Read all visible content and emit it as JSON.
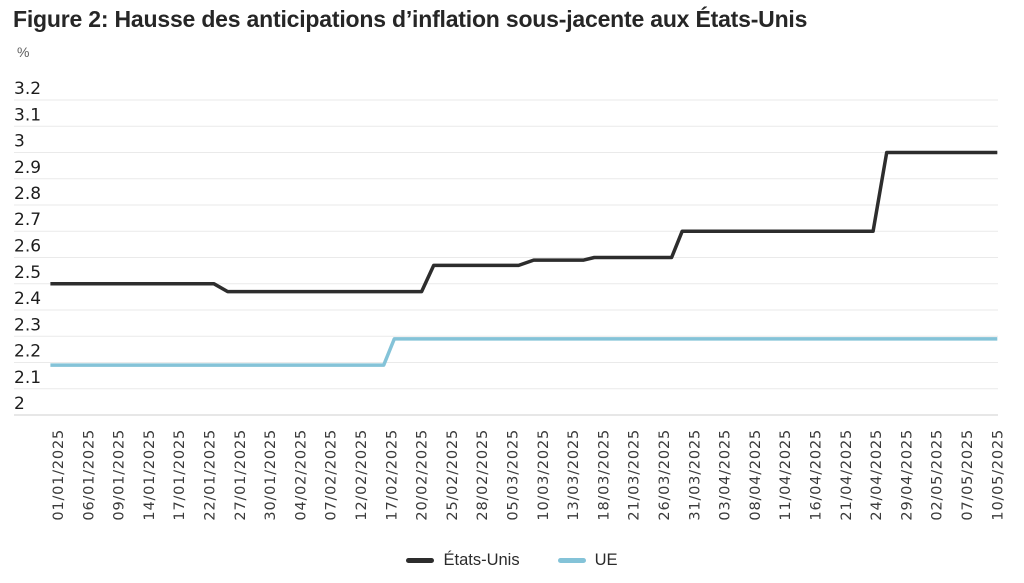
{
  "figure": {
    "title": "Figure 2: Hausse des anticipations d’inflation sous-jacente aux États-Unis",
    "unit_label": "%"
  },
  "chart_data": {
    "type": "line",
    "title": "Figure 2: Hausse des anticipations d’inflation sous-jacente aux États-Unis",
    "xlabel": "",
    "ylabel": "%",
    "ylim": [
      2.0,
      3.2
    ],
    "grid": true,
    "legend_position": "bottom",
    "line_style": "step",
    "y_ticks": [
      "3.2",
      "3.1",
      "3",
      "2.9",
      "2.8",
      "2.7",
      "2.6",
      "2.5",
      "2.4",
      "2.3",
      "2.2",
      "2.1",
      "2"
    ],
    "x_labels": [
      "01/01/2025",
      "06/01/2025",
      "09/01/2025",
      "14/01/2025",
      "17/01/2025",
      "22/01/2025",
      "27/01/2025",
      "30/01/2025",
      "04/02/2025",
      "07/02/2025",
      "12/02/2025",
      "17/02/2025",
      "20/02/2025",
      "25/02/2025",
      "28/02/2025",
      "05/03/2025",
      "10/03/2025",
      "13/03/2025",
      "18/03/2025",
      "21/03/2025",
      "26/03/2025",
      "31/03/2025",
      "03/04/2025",
      "08/04/2025",
      "11/04/2025",
      "16/04/2025",
      "21/04/2025",
      "24/04/2025",
      "29/04/2025",
      "02/05/2025",
      "07/05/2025",
      "10/05/2025"
    ],
    "series": [
      {
        "name": "États-Unis",
        "color": "#2d2d2d",
        "segments": [
          {
            "start": -0.25,
            "end": 5.15,
            "value": 2.5
          },
          {
            "start": 5.6,
            "end": 12.0,
            "value": 2.47
          },
          {
            "start": 12.4,
            "end": 15.2,
            "value": 2.57
          },
          {
            "start": 15.7,
            "end": 17.35,
            "value": 2.59
          },
          {
            "start": 17.7,
            "end": 20.25,
            "value": 2.6
          },
          {
            "start": 20.6,
            "end": 26.9,
            "value": 2.7
          },
          {
            "start": 27.35,
            "end": 31.0,
            "value": 3.0
          }
        ]
      },
      {
        "name": "UE",
        "color": "#84c3d8",
        "segments": [
          {
            "start": -0.25,
            "end": 10.75,
            "value": 2.19
          },
          {
            "start": 11.1,
            "end": 31.0,
            "value": 2.29
          }
        ]
      }
    ],
    "legend": [
      "États-Unis",
      "UE"
    ]
  }
}
